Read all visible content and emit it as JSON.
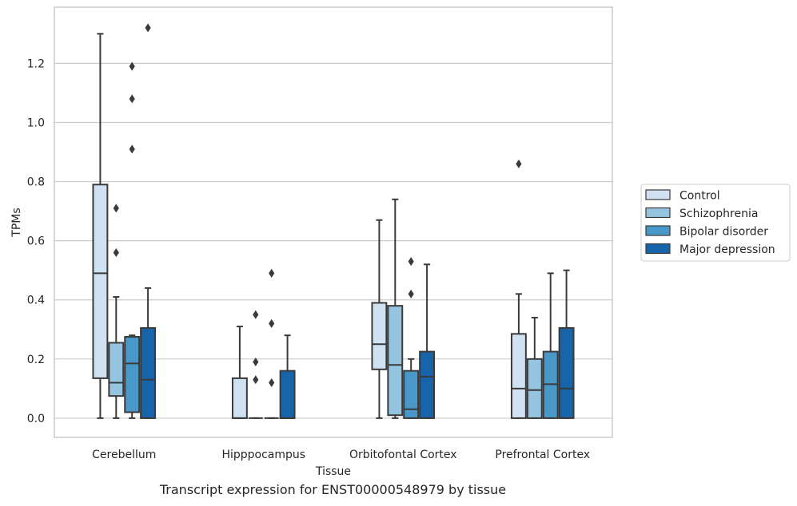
{
  "caption": "Transcript expression for ENST00000548979 by tissue",
  "chart_data": {
    "type": "boxplot",
    "xlabel": "Tissue",
    "ylabel": "TPMs",
    "ylim": [
      -0.065,
      1.39
    ],
    "yticks": [
      0.0,
      0.2,
      0.4,
      0.6,
      0.8,
      1.0,
      1.2
    ],
    "ytick_labels": [
      "0.0",
      "0.2",
      "0.4",
      "0.6",
      "0.8",
      "1.0",
      "1.2"
    ],
    "grid": true,
    "legend_position": "right",
    "categories": [
      "Cerebellum",
      "Hipppocampus",
      "Orbitofontal Cortex",
      "Prefrontal Cortex"
    ],
    "series": [
      {
        "name": "Control",
        "color": "#d0e1f2",
        "boxes": [
          {
            "whislo": 0.0,
            "q1": 0.135,
            "med": 0.49,
            "q3": 0.79,
            "whishi": 1.3,
            "fliers": []
          },
          {
            "whislo": 0.0,
            "q1": 0.0,
            "med": 0.0,
            "q3": 0.135,
            "whishi": 0.31,
            "fliers": []
          },
          {
            "whislo": 0.0,
            "q1": 0.165,
            "med": 0.25,
            "q3": 0.39,
            "whishi": 0.67,
            "fliers": []
          },
          {
            "whislo": 0.0,
            "q1": 0.0,
            "med": 0.1,
            "q3": 0.285,
            "whishi": 0.42,
            "fliers": [
              0.86
            ]
          }
        ]
      },
      {
        "name": "Schizophrenia",
        "color": "#94c4df",
        "boxes": [
          {
            "whislo": 0.0,
            "q1": 0.075,
            "med": 0.12,
            "q3": 0.255,
            "whishi": 0.41,
            "fliers": [
              0.56,
              0.71
            ]
          },
          {
            "whislo": 0.0,
            "q1": 0.0,
            "med": 0.0,
            "q3": 0.0,
            "whishi": 0.0,
            "fliers": [
              0.13,
              0.19,
              0.35
            ]
          },
          {
            "whislo": 0.0,
            "q1": 0.01,
            "med": 0.18,
            "q3": 0.38,
            "whishi": 0.74,
            "fliers": []
          },
          {
            "whislo": 0.0,
            "q1": 0.0,
            "med": 0.095,
            "q3": 0.2,
            "whishi": 0.34,
            "fliers": []
          }
        ]
      },
      {
        "name": "Bipolar disorder",
        "color": "#4a98c9",
        "boxes": [
          {
            "whislo": 0.0,
            "q1": 0.02,
            "med": 0.185,
            "q3": 0.275,
            "whishi": 0.28,
            "fliers": [
              0.91,
              1.08,
              1.19
            ]
          },
          {
            "whislo": 0.0,
            "q1": 0.0,
            "med": 0.0,
            "q3": 0.0,
            "whishi": 0.0,
            "fliers": [
              0.12,
              0.32,
              0.49
            ]
          },
          {
            "whislo": 0.0,
            "q1": 0.0,
            "med": 0.03,
            "q3": 0.16,
            "whishi": 0.2,
            "fliers": [
              0.42,
              0.53
            ]
          },
          {
            "whislo": 0.0,
            "q1": 0.0,
            "med": 0.115,
            "q3": 0.225,
            "whishi": 0.49,
            "fliers": []
          }
        ]
      },
      {
        "name": "Major depression",
        "color": "#1764ab",
        "boxes": [
          {
            "whislo": 0.0,
            "q1": 0.0,
            "med": 0.13,
            "q3": 0.305,
            "whishi": 0.44,
            "fliers": [
              1.32
            ]
          },
          {
            "whislo": 0.0,
            "q1": 0.0,
            "med": 0.0,
            "q3": 0.16,
            "whishi": 0.28,
            "fliers": []
          },
          {
            "whislo": 0.0,
            "q1": 0.0,
            "med": 0.14,
            "q3": 0.225,
            "whishi": 0.52,
            "fliers": []
          },
          {
            "whislo": 0.0,
            "q1": 0.0,
            "med": 0.1,
            "q3": 0.305,
            "whishi": 0.5,
            "fliers": []
          }
        ]
      }
    ]
  }
}
